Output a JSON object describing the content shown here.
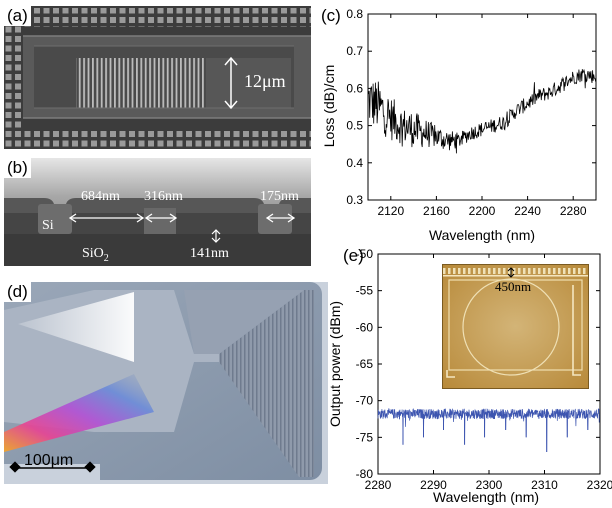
{
  "figure": {
    "panel_a": {
      "label": "(a)",
      "dimension_label": "12μm"
    },
    "panel_b": {
      "label": "(b)",
      "dim_684": "684nm",
      "dim_316": "316nm",
      "dim_175": "175nm",
      "dim_141": "141nm",
      "material_top": "Si",
      "material_bottom": "SiO",
      "material_bottom_sub": "2"
    },
    "panel_c": {
      "label": "(c)"
    },
    "panel_d": {
      "label": "(d)",
      "scale_bar": "100μm"
    },
    "panel_e": {
      "label": "(e)",
      "inset_dimension": "450nm"
    }
  },
  "chart_data": [
    {
      "id": "c",
      "type": "line",
      "title": "",
      "xlabel": "Wavelength (nm)",
      "ylabel": "Loss (dB)/cm",
      "xlim": [
        2100,
        2300
      ],
      "ylim": [
        0.3,
        0.8
      ],
      "xticks": [
        2120,
        2160,
        2200,
        2240,
        2280
      ],
      "yticks": [
        0.3,
        0.4,
        0.5,
        0.6,
        0.7,
        0.8
      ],
      "series": [
        {
          "color": "#000000",
          "x": [
            2100,
            2110,
            2120,
            2130,
            2140,
            2150,
            2160,
            2170,
            2180,
            2190,
            2200,
            2210,
            2220,
            2230,
            2240,
            2250,
            2260,
            2270,
            2280,
            2290,
            2300
          ],
          "y": [
            0.57,
            0.55,
            0.52,
            0.5,
            0.49,
            0.48,
            0.47,
            0.46,
            0.46,
            0.48,
            0.49,
            0.5,
            0.51,
            0.54,
            0.56,
            0.58,
            0.59,
            0.61,
            0.63,
            0.64,
            0.63
          ],
          "noise": [
            0.07,
            0.07,
            0.06,
            0.05,
            0.05,
            0.04,
            0.03,
            0.03,
            0.02,
            0.02,
            0.02,
            0.02,
            0.02,
            0.02,
            0.02,
            0.02,
            0.02,
            0.02,
            0.02,
            0.02,
            0.02
          ]
        }
      ]
    },
    {
      "id": "e",
      "type": "line",
      "title": "",
      "xlabel": "Wavelength (nm)",
      "ylabel": "Output power (dBm)",
      "xlim": [
        2280,
        2320
      ],
      "ylim": [
        -80,
        -50
      ],
      "xticks": [
        2280,
        2290,
        2300,
        2310,
        2320
      ],
      "yticks": [
        -80,
        -75,
        -70,
        -65,
        -60,
        -55,
        -50
      ],
      "series": [
        {
          "color": "#3d55b0",
          "baseline": -71.8,
          "noise": 0.7,
          "dips_x": [
            2284.5,
            2288.2,
            2291.8,
            2295.6,
            2299.2,
            2303.0,
            2306.7,
            2310.4,
            2314.1,
            2317.8
          ],
          "dips_y": [
            -76,
            -75,
            -74,
            -76,
            -75,
            -74,
            -75,
            -77,
            -75,
            -74
          ]
        }
      ]
    }
  ]
}
